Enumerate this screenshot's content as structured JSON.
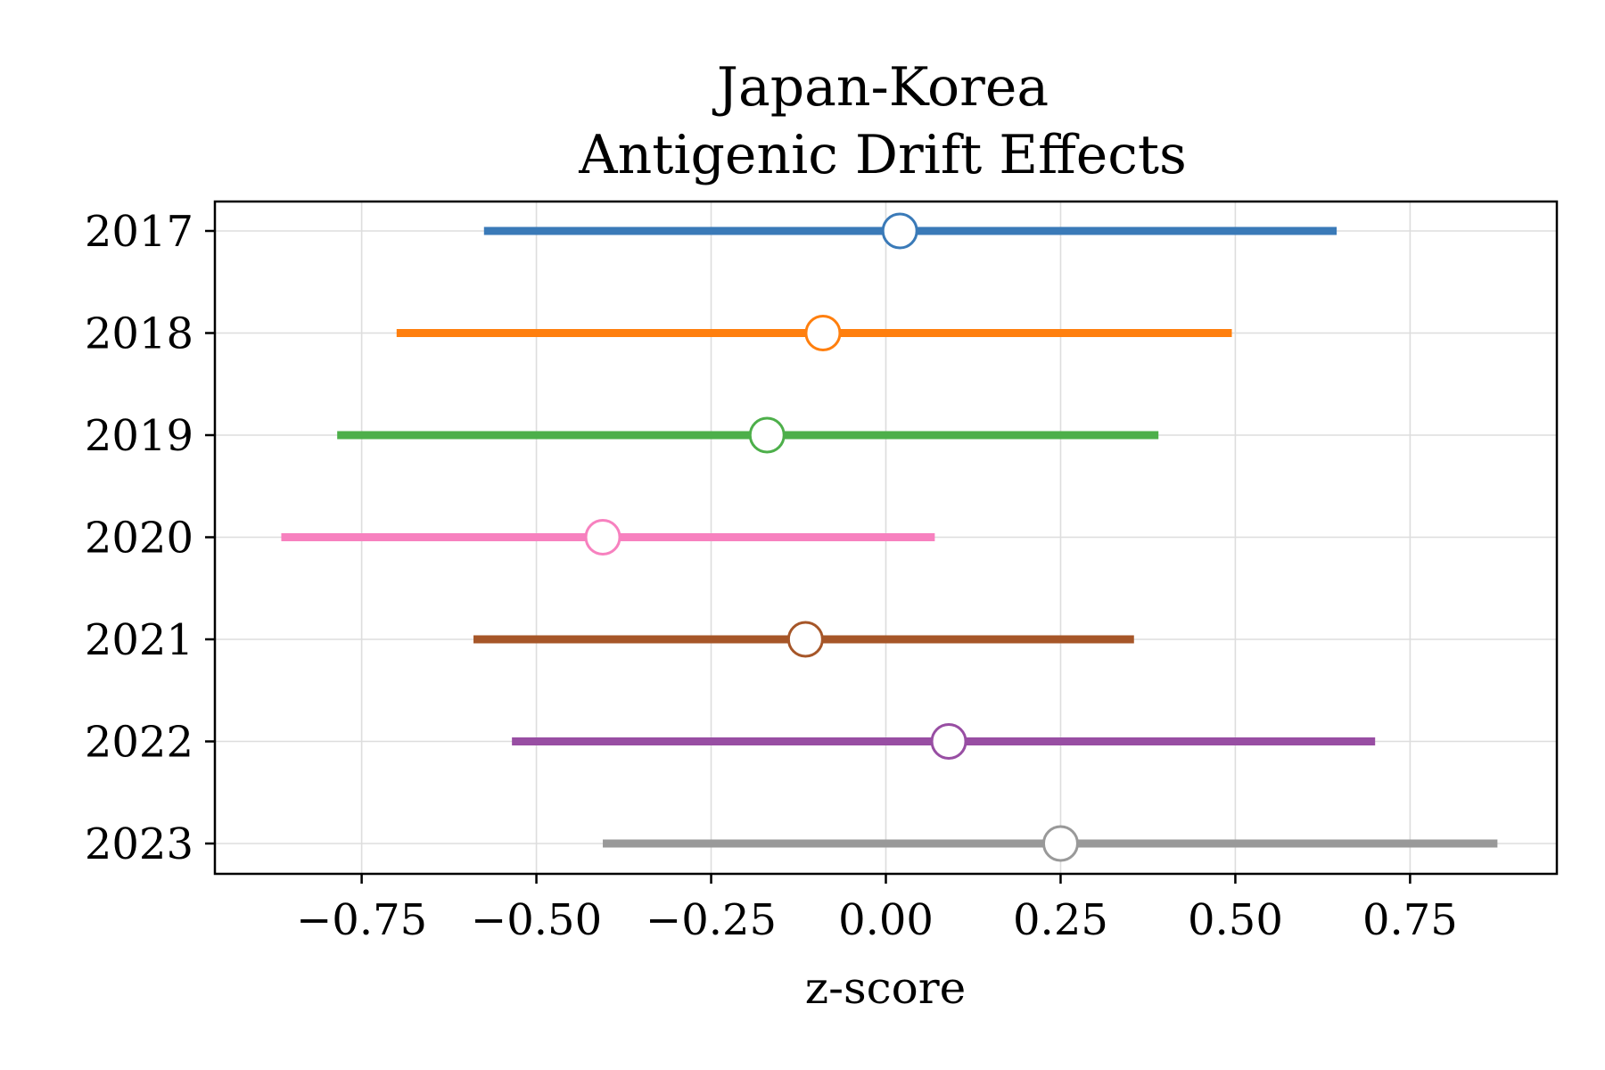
{
  "chart_data": {
    "type": "forest",
    "title_lines": [
      "Japan-Korea",
      "Antigenic Drift Effects"
    ],
    "xlabel": "z-score",
    "ylabel": "",
    "xlim": [
      -0.96,
      0.96
    ],
    "x_ticks": [
      -0.75,
      -0.5,
      -0.25,
      0.0,
      0.25,
      0.5,
      0.75
    ],
    "x_tick_labels": [
      "−0.75",
      "−0.50",
      "−0.25",
      "0.00",
      "0.25",
      "0.50",
      "0.75"
    ],
    "grid": true,
    "categories": [
      "2017",
      "2018",
      "2019",
      "2020",
      "2021",
      "2022",
      "2023"
    ],
    "points": [
      {
        "label": "2017",
        "estimate": 0.02,
        "lower": -0.575,
        "upper": 0.645,
        "color": "#3a7ab8"
      },
      {
        "label": "2018",
        "estimate": -0.09,
        "lower": -0.7,
        "upper": 0.495,
        "color": "#ff7f0e"
      },
      {
        "label": "2019",
        "estimate": -0.17,
        "lower": -0.785,
        "upper": 0.39,
        "color": "#4daf4a"
      },
      {
        "label": "2020",
        "estimate": -0.405,
        "lower": -0.865,
        "upper": 0.07,
        "color": "#f781bf"
      },
      {
        "label": "2021",
        "estimate": -0.115,
        "lower": -0.59,
        "upper": 0.355,
        "color": "#a65628"
      },
      {
        "label": "2022",
        "estimate": 0.09,
        "lower": -0.535,
        "upper": 0.7,
        "color": "#984ea3"
      },
      {
        "label": "2023",
        "estimate": 0.25,
        "lower": -0.405,
        "upper": 0.875,
        "color": "#999999"
      }
    ]
  }
}
